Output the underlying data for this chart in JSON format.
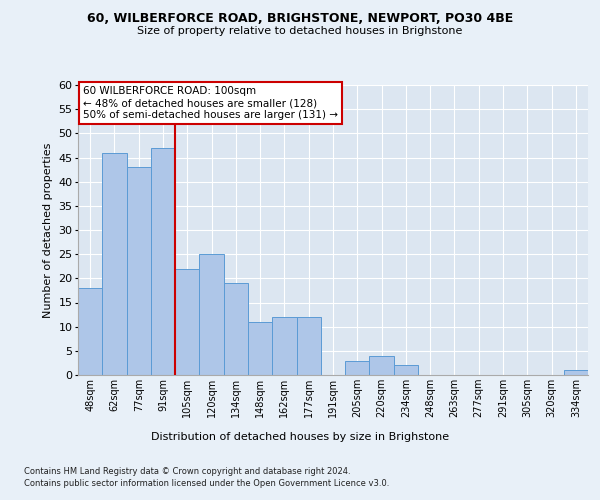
{
  "title1": "60, WILBERFORCE ROAD, BRIGHSTONE, NEWPORT, PO30 4BE",
  "title2": "Size of property relative to detached houses in Brighstone",
  "xlabel": "Distribution of detached houses by size in Brighstone",
  "ylabel": "Number of detached properties",
  "categories": [
    "48sqm",
    "62sqm",
    "77sqm",
    "91sqm",
    "105sqm",
    "120sqm",
    "134sqm",
    "148sqm",
    "162sqm",
    "177sqm",
    "191sqm",
    "205sqm",
    "220sqm",
    "234sqm",
    "248sqm",
    "263sqm",
    "277sqm",
    "291sqm",
    "305sqm",
    "320sqm",
    "334sqm"
  ],
  "values": [
    18,
    46,
    43,
    47,
    22,
    25,
    19,
    11,
    12,
    12,
    0,
    3,
    4,
    2,
    0,
    0,
    0,
    0,
    0,
    0,
    1
  ],
  "bar_color": "#aec6e8",
  "bar_edge_color": "#5b9bd5",
  "background_color": "#e8f0f8",
  "plot_bg_color": "#dce6f1",
  "grid_color": "#ffffff",
  "vline_color": "#cc0000",
  "annotation_text": "60 WILBERFORCE ROAD: 100sqm\n← 48% of detached houses are smaller (128)\n50% of semi-detached houses are larger (131) →",
  "annotation_box_color": "#ffffff",
  "annotation_edge_color": "#cc0000",
  "footnote1": "Contains HM Land Registry data © Crown copyright and database right 2024.",
  "footnote2": "Contains public sector information licensed under the Open Government Licence v3.0.",
  "ylim": [
    0,
    60
  ],
  "yticks": [
    0,
    5,
    10,
    15,
    20,
    25,
    30,
    35,
    40,
    45,
    50,
    55,
    60
  ]
}
